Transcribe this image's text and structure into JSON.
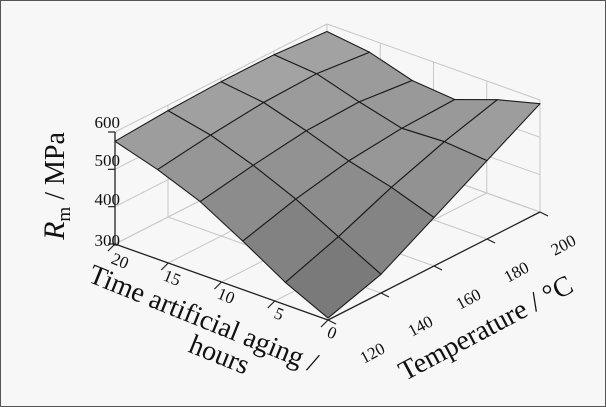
{
  "chart_data": {
    "type": "surface",
    "xlabel_line1": "Time artificial aging /",
    "xlabel_line2": "hours",
    "ylabel": "Temperature / °C",
    "zlabel_symbol": "R",
    "zlabel_subscript": "m",
    "zlabel_unit": " / MPa",
    "time_hours": [
      0,
      4,
      8,
      12,
      16,
      20
    ],
    "temperature_c": [
      120,
      140,
      160,
      180,
      200
    ],
    "time_ticks": [
      "0",
      "5",
      "10",
      "15",
      "20"
    ],
    "temperature_ticks": [
      "120",
      "140",
      "160",
      "180",
      "200"
    ],
    "z_ticks": [
      "300",
      "400",
      "500",
      "600"
    ],
    "zlim": [
      300,
      600
    ],
    "xlim": [
      0,
      20
    ],
    "ylim": [
      120,
      200
    ],
    "grid": true,
    "rm_mpa": [
      [
        305,
        350,
        430,
        510,
        590
      ],
      [
        360,
        410,
        470,
        520,
        560
      ],
      [
        430,
        470,
        500,
        515,
        520
      ],
      [
        495,
        520,
        540,
        545,
        530
      ],
      [
        540,
        560,
        575,
        580,
        565
      ],
      [
        575,
        585,
        590,
        590,
        580
      ]
    ]
  },
  "colors": {
    "surface_light": "#b4b4b4",
    "surface_dark": "#5e5e5e",
    "mesh": "#1c1c1c",
    "grid": "#c7c7c7",
    "background": "#f7f7f7"
  }
}
